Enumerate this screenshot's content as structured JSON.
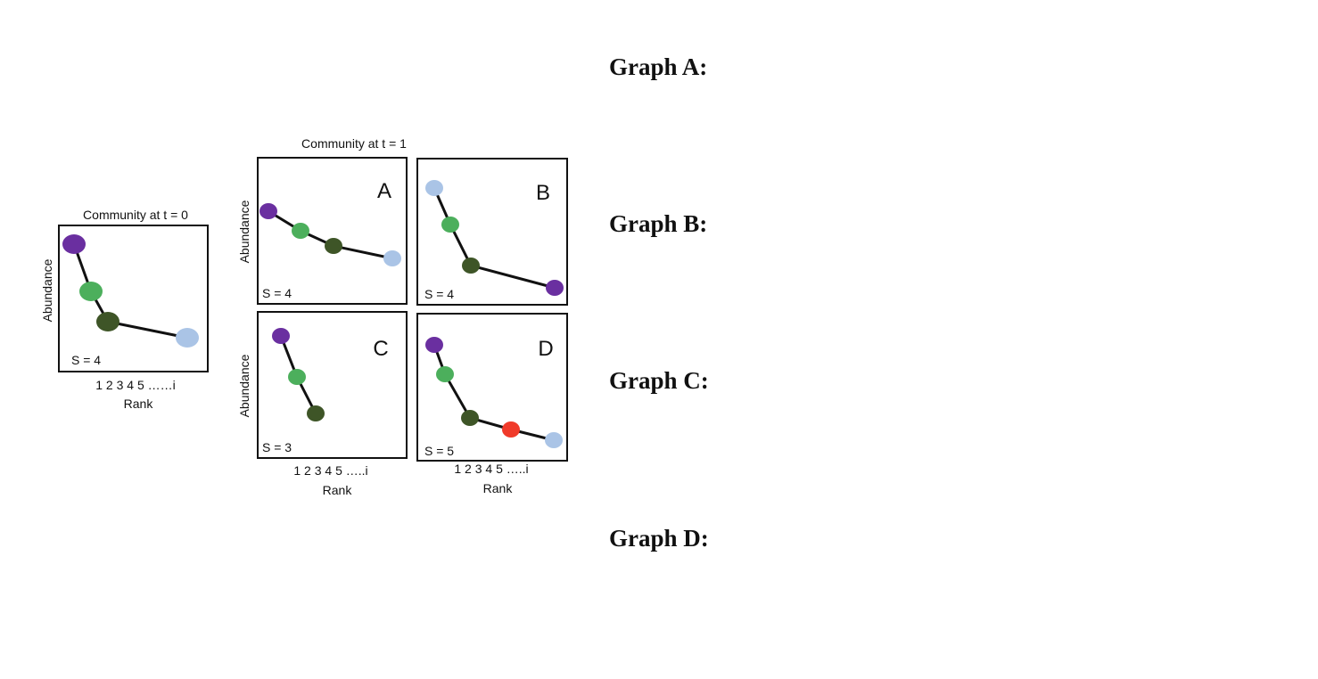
{
  "figure": {
    "t0": {
      "title": "Community at t = 0",
      "ylabel": "Abundance",
      "xticks": "1 2 3 4 5 ……i",
      "xlabel": "Rank",
      "s_label": "S = 4",
      "points": [
        {
          "species": "purple"
        },
        {
          "species": "light-green"
        },
        {
          "species": "dark-green"
        },
        {
          "species": "light-blue"
        }
      ]
    },
    "t1": {
      "title": "Community at t = 1",
      "ylabel": "Abundance",
      "xticks": "1 2 3 4 5 …..i",
      "xlabel": "Rank",
      "panels": [
        {
          "letter": "A",
          "s_label": "S = 4",
          "points": [
            {
              "species": "purple"
            },
            {
              "species": "light-green"
            },
            {
              "species": "dark-green"
            },
            {
              "species": "light-blue"
            }
          ]
        },
        {
          "letter": "B",
          "s_label": "S = 4",
          "points": [
            {
              "species": "light-blue"
            },
            {
              "species": "light-green"
            },
            {
              "species": "dark-green"
            },
            {
              "species": "purple"
            }
          ]
        },
        {
          "letter": "C",
          "s_label": "S = 3",
          "points": [
            {
              "species": "purple"
            },
            {
              "species": "light-green"
            },
            {
              "species": "dark-green"
            }
          ]
        },
        {
          "letter": "D",
          "s_label": "S = 5",
          "points": [
            {
              "species": "purple"
            },
            {
              "species": "light-green"
            },
            {
              "species": "dark-green"
            },
            {
              "species": "red"
            },
            {
              "species": "light-blue"
            }
          ]
        }
      ]
    },
    "colors": {
      "purple": "#6a2fa0",
      "light-green": "#4caf5c",
      "dark-green": "#3e5527",
      "light-blue": "#aac4e6",
      "red": "#f03a2a"
    }
  },
  "answers": {
    "graph_a": "Graph A:",
    "graph_b": "Graph B:",
    "graph_c": "Graph C:",
    "graph_d": "Graph D:"
  }
}
